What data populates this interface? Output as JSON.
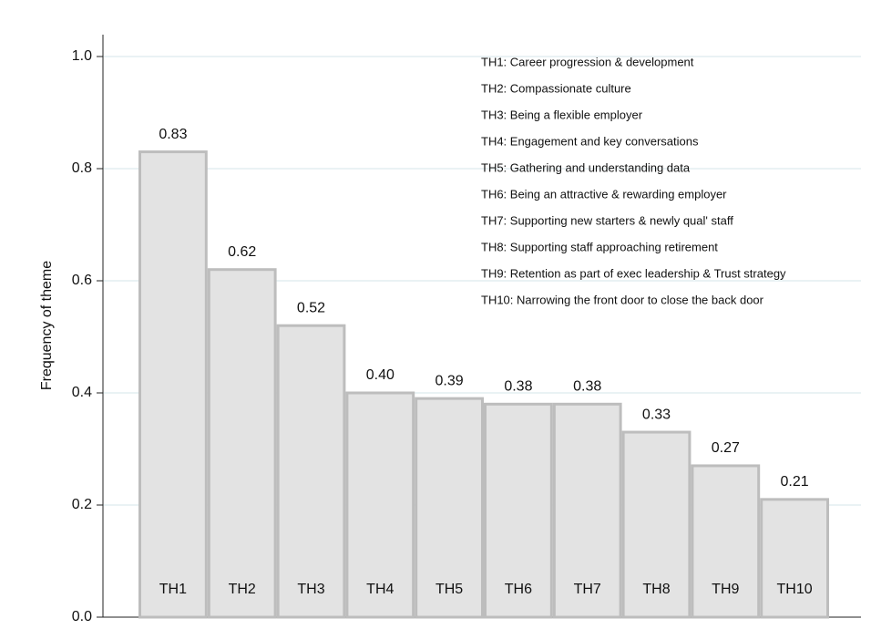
{
  "chart_data": {
    "type": "bar",
    "y_label": "Frequency of theme",
    "categories": [
      "TH1",
      "TH2",
      "TH3",
      "TH4",
      "TH5",
      "TH6",
      "TH7",
      "TH8",
      "TH9",
      "TH10"
    ],
    "values": [
      0.83,
      0.62,
      0.52,
      0.4,
      0.39,
      0.38,
      0.38,
      0.33,
      0.27,
      0.21
    ],
    "value_labels": [
      "0.83",
      "0.62",
      "0.52",
      "0.40",
      "0.39",
      "0.38",
      "0.38",
      "0.33",
      "0.27",
      "0.21"
    ],
    "color": "#e3e3e3",
    "ylim": [
      0,
      1
    ],
    "yticks": [
      {
        "value": 0,
        "label": "0.0"
      },
      0.2,
      0.4,
      0.6,
      0.8,
      {
        "value": 1,
        "label": "1.0"
      }
    ],
    "grid": true,
    "annotations": [
      "TH1: Career progression & development",
      "TH2: Compassionate culture",
      "TH3: Being a flexible employer",
      "TH4: Engagement and key conversations",
      "TH5: Gathering and understanding data",
      "TH6: Being an attractive & rewarding employer",
      "TH7: Supporting new starters & newly qual' staff",
      "TH8: Supporting staff approaching retirement",
      "TH9: Retention as part of exec leadership & Trust strategy",
      "TH10: Narrowing the front door to close the back door"
    ]
  }
}
